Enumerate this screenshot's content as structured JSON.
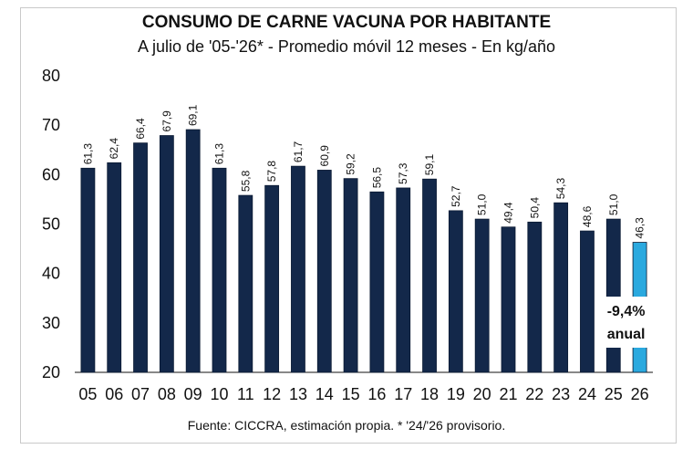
{
  "chart_data": {
    "type": "bar",
    "title": "CONSUMO DE CARNE VACUNA POR HABITANTE",
    "subtitle": "A julio de '05-'26* - Promedio móvil 12 meses -  En kg/año",
    "categories": [
      "05",
      "06",
      "07",
      "08",
      "09",
      "10",
      "11",
      "12",
      "13",
      "14",
      "15",
      "16",
      "17",
      "18",
      "19",
      "20",
      "21",
      "22",
      "23",
      "24",
      "25",
      "26"
    ],
    "values": [
      61.3,
      62.4,
      66.4,
      67.9,
      69.1,
      61.3,
      55.8,
      57.8,
      61.7,
      60.9,
      59.2,
      56.5,
      57.3,
      59.1,
      52.7,
      51.0,
      49.4,
      50.4,
      54.3,
      48.6,
      51.0,
      46.3
    ],
    "value_labels": [
      "61,3",
      "62,4",
      "66,4",
      "67,9",
      "69,1",
      "61,3",
      "55,8",
      "57,8",
      "61,7",
      "60,9",
      "59,2",
      "56,5",
      "57,3",
      "59,1",
      "52,7",
      "51,0",
      "49,4",
      "50,4",
      "54,3",
      "48,6",
      "51,0",
      "46,3"
    ],
    "yticks": [
      20,
      30,
      40,
      50,
      60,
      70,
      80
    ],
    "ylim": [
      20,
      80
    ],
    "grid": false,
    "colors": {
      "bar": "#13284a",
      "highlight": "#2aa9df"
    },
    "highlight_index": 21,
    "annotation": {
      "line1": "-9,4%",
      "line2": "anual"
    },
    "source": "Fuente: CICCRA, estimación propia. * '24/'26 provisorio."
  }
}
